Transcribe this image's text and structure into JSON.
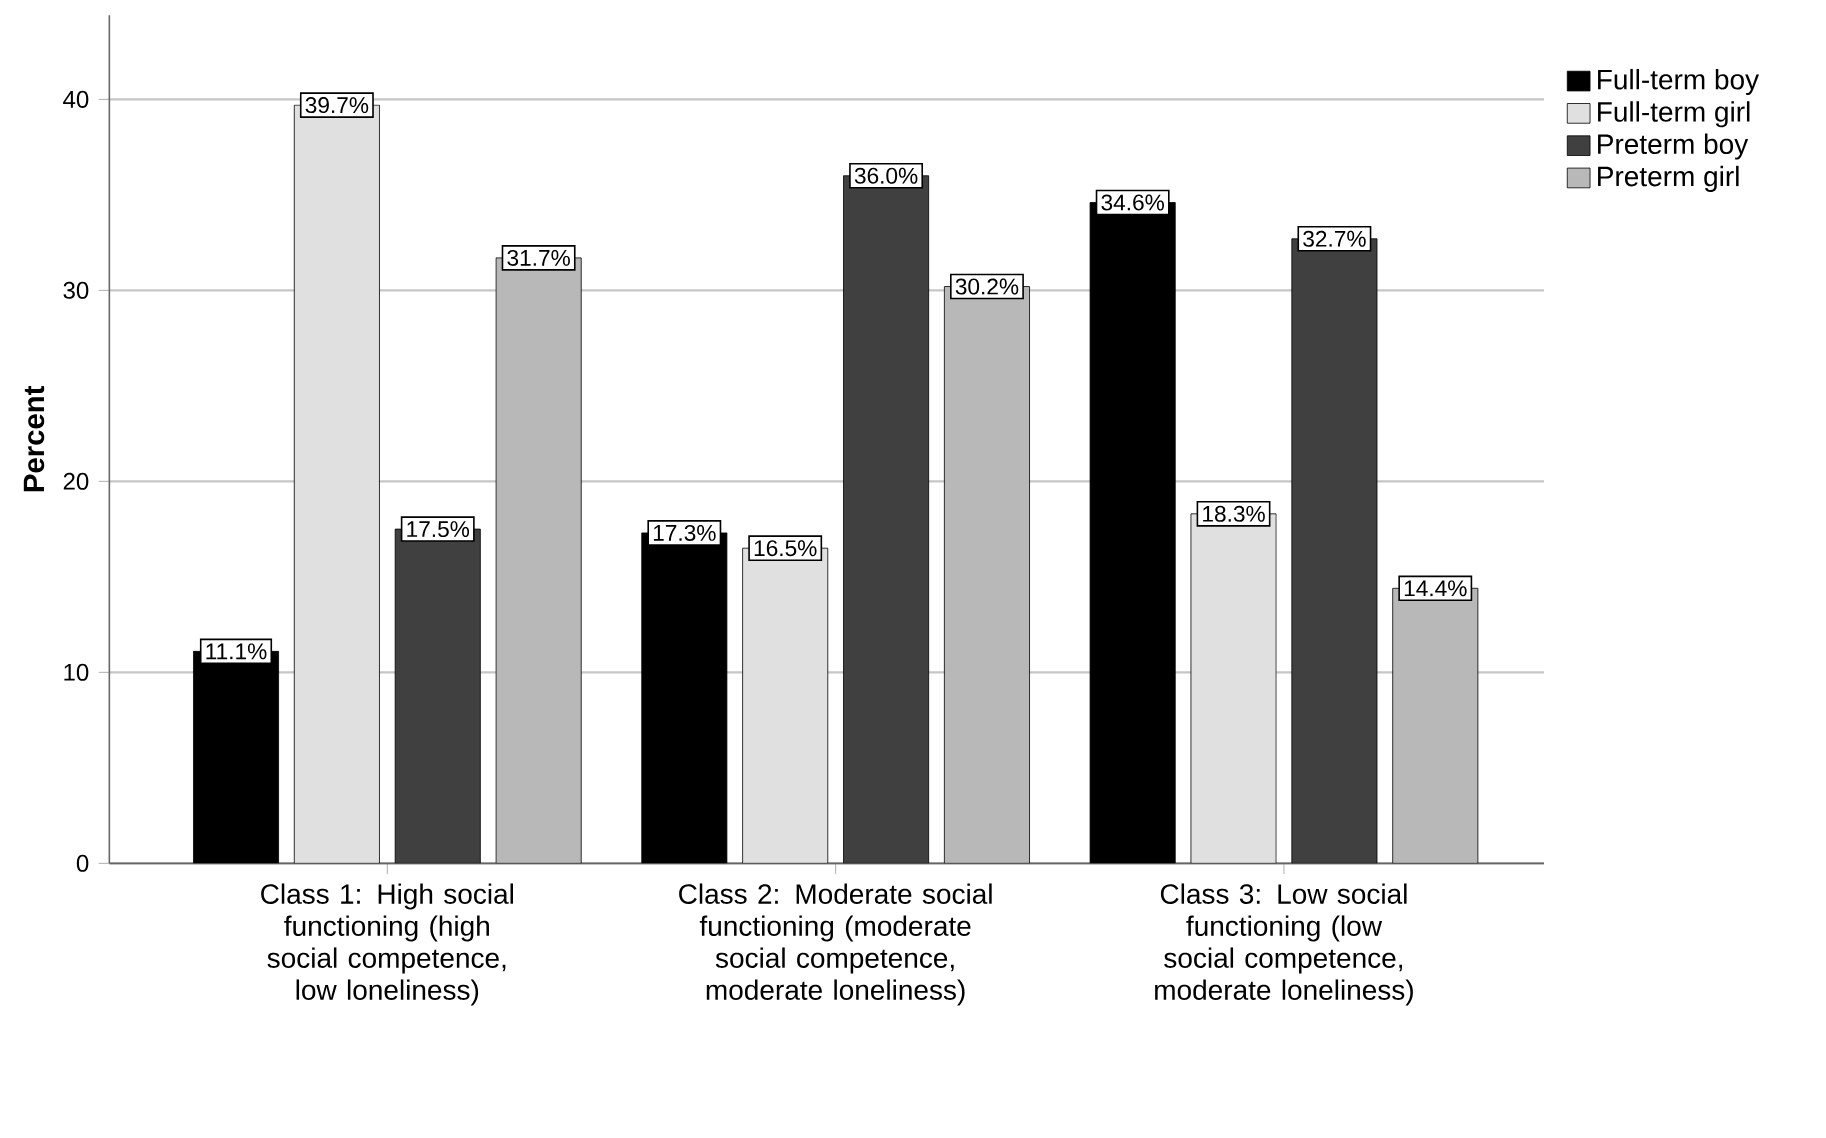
{
  "chart_data": {
    "type": "bar",
    "ylabel": "Percent",
    "categories": [
      "Class 1: High social functioning (high social competence, low loneliness)",
      "Class 2: Moderate social functioning (moderate social competence, moderate loneliness)",
      "Class 3: Low social functioning (low social competence, moderate loneliness)"
    ],
    "series": [
      {
        "name": "Full-term boy",
        "color": "#000000",
        "values": [
          11.1,
          17.3,
          34.6
        ],
        "value_labels": [
          "11.1%",
          "17.3%",
          "34.6%"
        ]
      },
      {
        "name": "Full-term girl",
        "color": "#e0e0e0",
        "values": [
          39.7,
          16.5,
          18.3
        ],
        "value_labels": [
          "39.7%",
          "16.5%",
          "18.3%"
        ]
      },
      {
        "name": "Preterm boy",
        "color": "#404040",
        "values": [
          17.5,
          36.0,
          32.7
        ],
        "value_labels": [
          "17.5%",
          "36.0%",
          "32.7%"
        ]
      },
      {
        "name": "Preterm girl",
        "color": "#b8b8b8",
        "values": [
          31.7,
          30.2,
          14.4
        ],
        "value_labels": [
          "31.7%",
          "30.2%",
          "14.4%"
        ]
      }
    ],
    "ylim": [
      0,
      44.4
    ],
    "yticks": [
      0,
      10,
      20,
      30,
      40
    ],
    "grid": "y",
    "legend": "top right"
  }
}
